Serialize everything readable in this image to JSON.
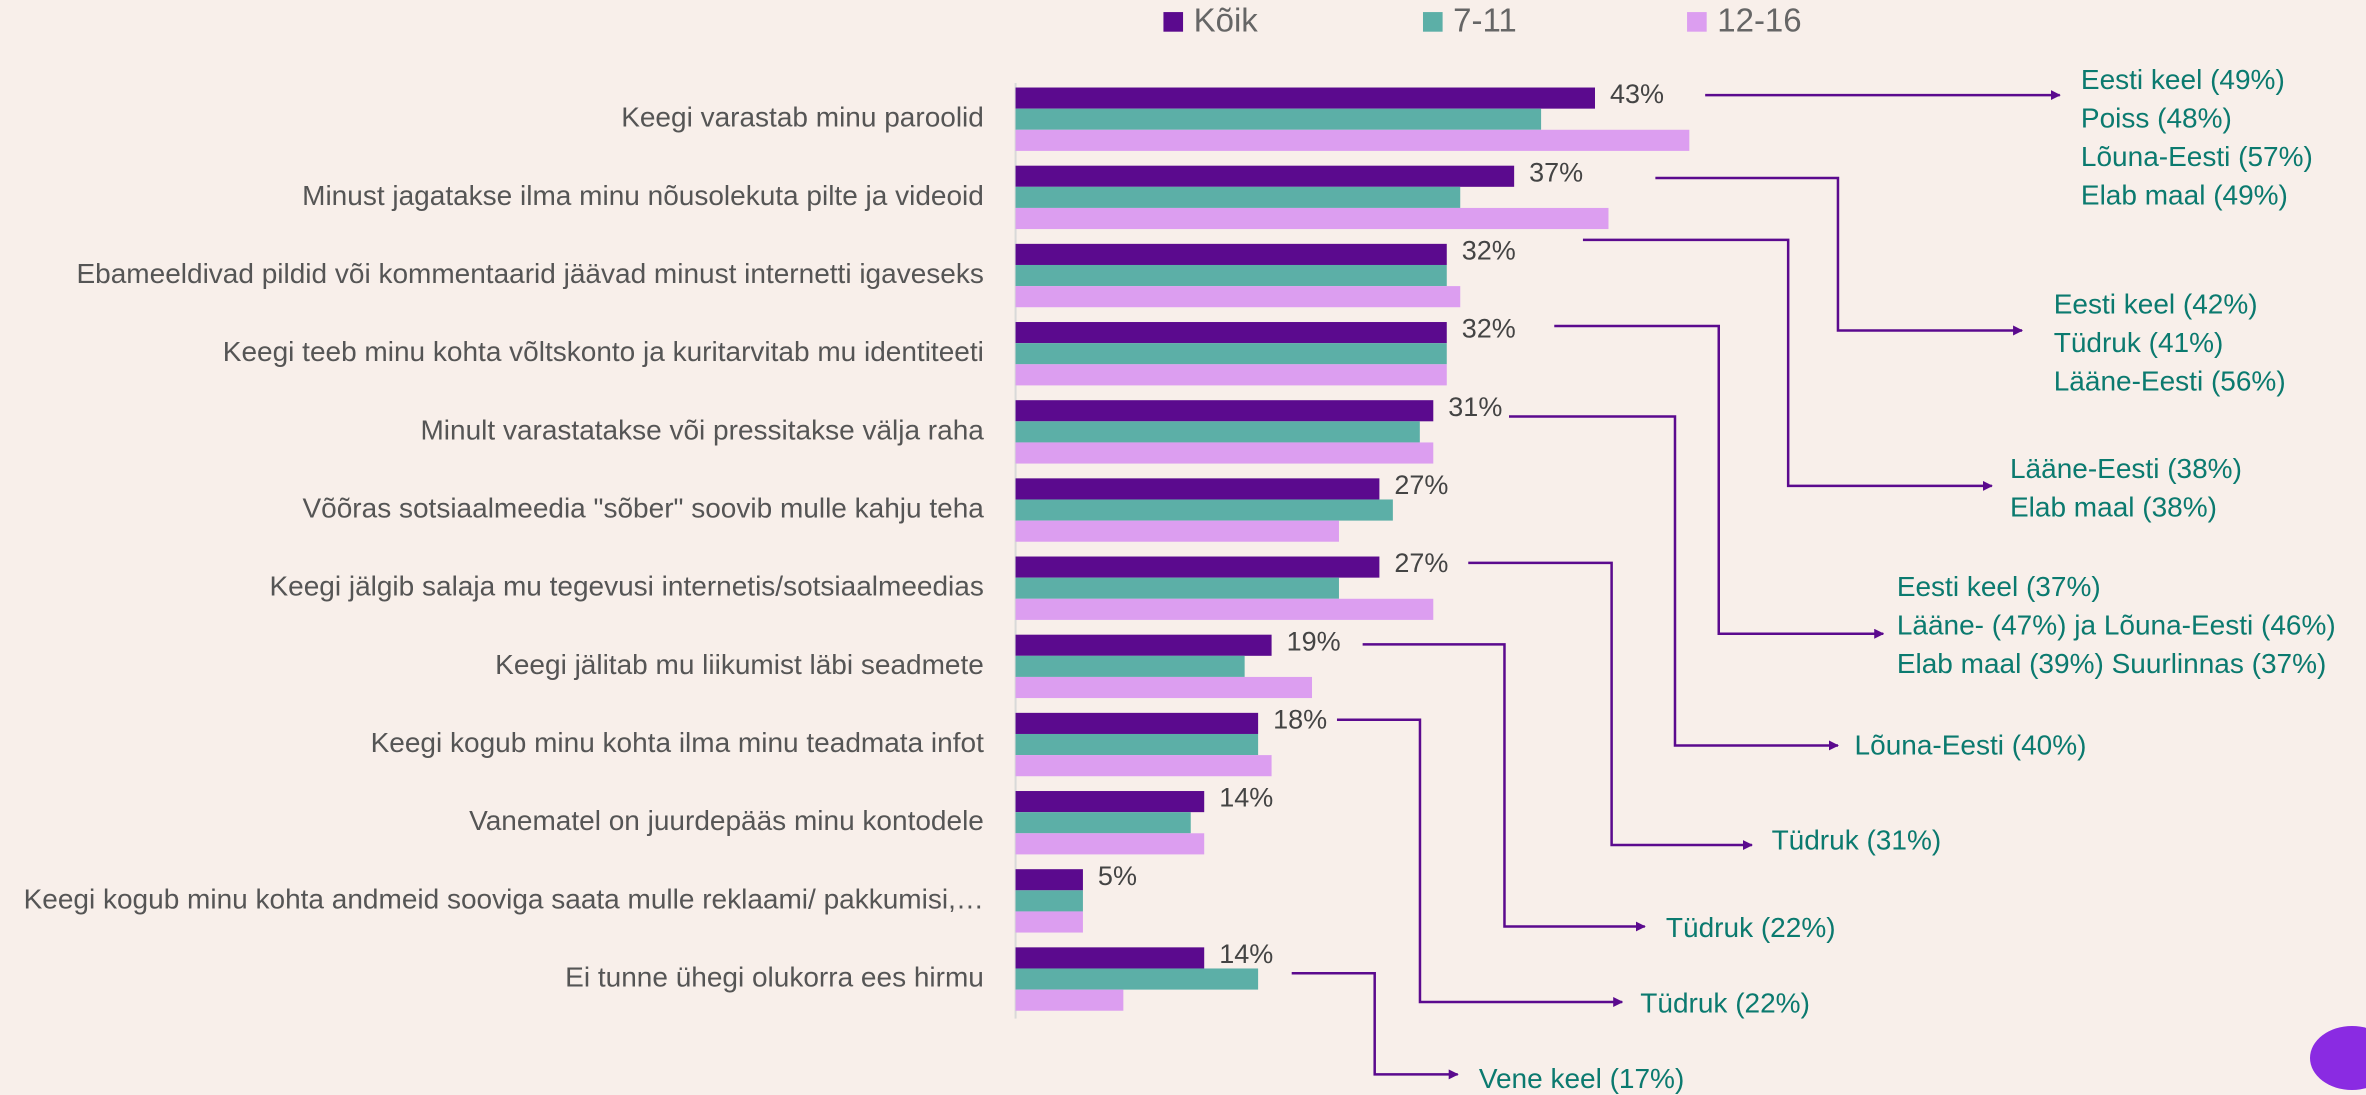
{
  "chart_data": {
    "type": "bar",
    "orientation": "horizontal",
    "categories": [
      "Keegi varastab minu paroolid",
      "Minust jagatakse ilma minu nõusolekuta pilte ja videoid",
      "Ebameeldivad pildid või kommentaarid jäävad minust internetti igaveseks",
      "Keegi teeb minu kohta võltskonto ja kuritarvitab mu identiteeti",
      "Minult varastatakse või pressitakse välja raha",
      "Võõras sotsiaalmeedia \"sõber\" soovib mulle kahju teha",
      "Keegi jälgib salaja mu tegevusi internetis/sotsiaalmeedias",
      "Keegi jälitab mu liikumist läbi seadmete",
      "Keegi kogub minu kohta ilma minu teadmata infot",
      "Vanematel on juurdepääs minu kontodele",
      "Keegi kogub minu kohta andmeid sooviga saata mulle reklaami/ pakkumisi,…",
      "Ei tunne ühegi olukorra ees hirmu"
    ],
    "series": [
      {
        "name": "Kõik",
        "color": "#5b0a8e",
        "values": [
          43,
          37,
          32,
          32,
          31,
          27,
          27,
          19,
          18,
          14,
          5,
          14
        ],
        "value_labels": [
          "43%",
          "37%",
          "32%",
          "32%",
          "31%",
          "27%",
          "27%",
          "19%",
          "18%",
          "14%",
          "5%",
          "14%"
        ]
      },
      {
        "name": "7-11",
        "color": "#5cafa7",
        "values": [
          39,
          33,
          32,
          32,
          30,
          28,
          24,
          17,
          18,
          13,
          5,
          18
        ]
      },
      {
        "name": "12-16",
        "color": "#dc9ef0",
        "values": [
          50,
          44,
          33,
          32,
          31,
          24,
          31,
          22,
          19,
          14,
          5,
          8
        ]
      }
    ],
    "xlim": [
      0,
      100
    ],
    "legend": "top",
    "annotations": [
      {
        "lines": [
          "Eesti keel (49%)",
          "Poiss (48%)",
          "Lõuna-Eesti (57%)",
          "Elab maal (49%)"
        ]
      },
      {
        "lines": [
          "Eesti keel (42%)",
          "Tüdruk (41%)",
          "Lääne-Eesti (56%)"
        ]
      },
      {
        "lines": [
          "Lääne-Eesti (38%)",
          "Elab maal (38%)"
        ]
      },
      {
        "lines": [
          "Eesti keel (37%)",
          "Lääne- (47%) ja Lõuna-Eesti (46%)",
          "Elab maal (39%) Suurlinnas (37%)"
        ]
      },
      {
        "lines": [
          "Lõuna-Eesti (40%)"
        ]
      },
      {
        "lines": [
          "Tüdruk (31%)"
        ]
      },
      {
        "lines": [
          "Tüdruk (22%)"
        ]
      },
      {
        "lines": [
          "Tüdruk (22%)"
        ]
      },
      {
        "lines": [
          "Vene keel (17%)"
        ]
      }
    ]
  }
}
